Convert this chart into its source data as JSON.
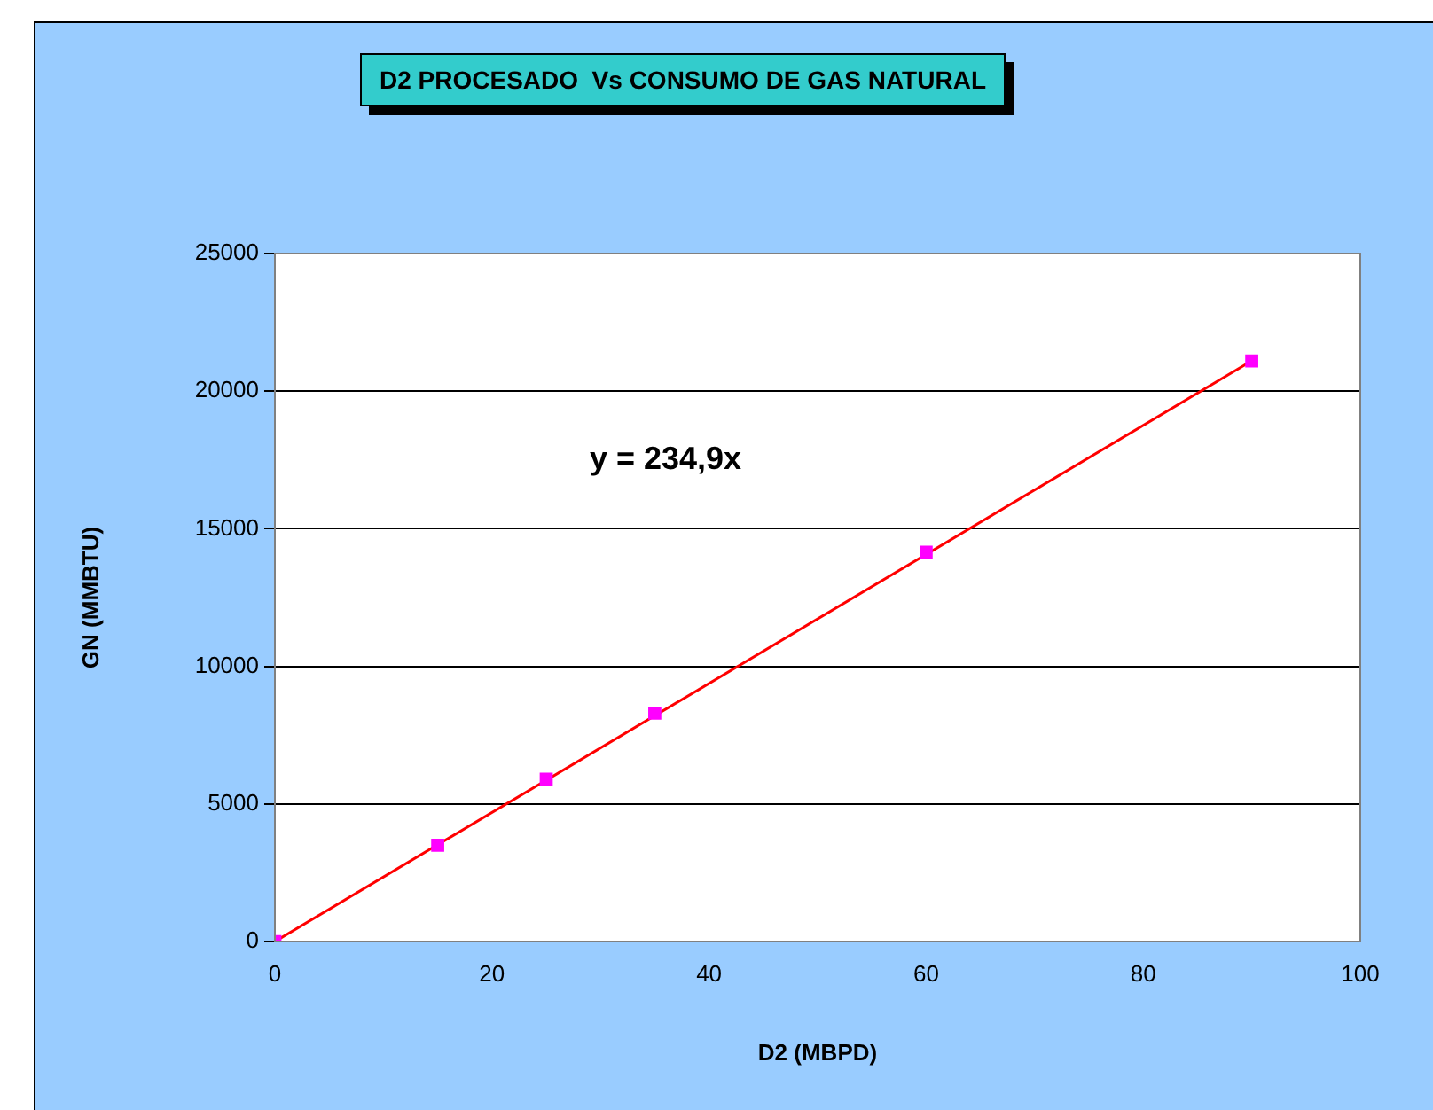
{
  "chart_data": {
    "type": "scatter",
    "title": "D2 PROCESADO  Vs CONSUMO DE GAS NATURAL",
    "xlabel": "D2 (MBPD)",
    "ylabel": "GN (MMBTU)",
    "x": [
      0,
      15,
      25,
      35,
      60,
      90
    ],
    "series": [
      {
        "color": "#ff00ff",
        "values": [
          0,
          3500,
          5900,
          8300,
          14150,
          21100
        ],
        "marker": "square"
      },
      {
        "type": "line",
        "color": "#ff0000",
        "x": [
          0,
          90
        ],
        "values": [
          0,
          21100
        ],
        "marker": "none"
      }
    ],
    "xlim": [
      0,
      100
    ],
    "xticks": [
      0,
      20,
      40,
      60,
      80,
      100
    ],
    "ylim": [
      0,
      25000
    ],
    "yticks": [
      0,
      5000,
      10000,
      15000,
      20000,
      25000
    ],
    "grid": "y",
    "legend": false,
    "annotations": [
      "y = 234,9x"
    ]
  }
}
